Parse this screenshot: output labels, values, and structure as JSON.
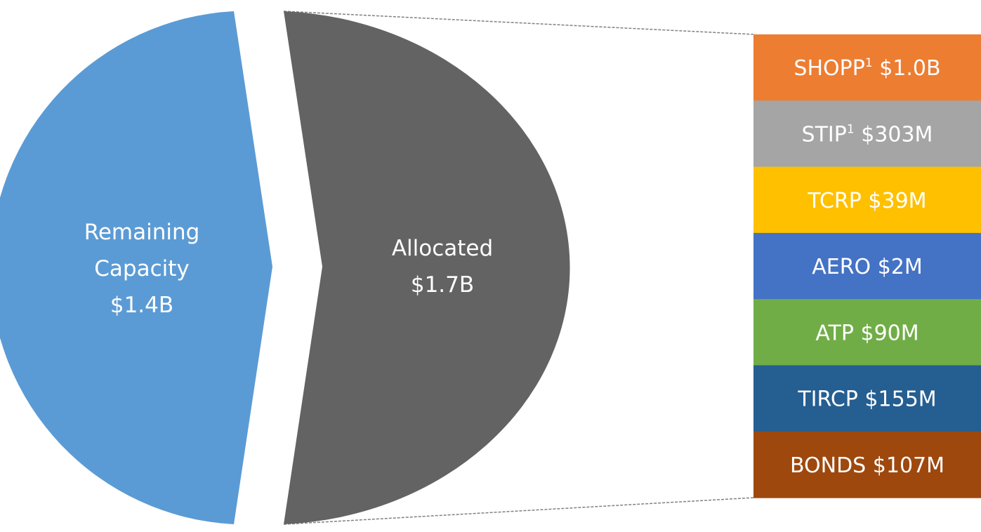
{
  "chart_data": {
    "type": "pie",
    "title": "",
    "slices": [
      {
        "label": "Remaining Capacity",
        "value_text": "$1.4B",
        "value": 1.4,
        "unit": "B",
        "color": "#5B9BD5"
      },
      {
        "label": "Allocated",
        "value_text": "$1.7B",
        "value": 1.7,
        "unit": "B",
        "color": "#636363"
      }
    ],
    "breakdown": {
      "of": "Allocated",
      "type": "stacked-bar",
      "segments": [
        {
          "name": "SHOPP",
          "superscript": "1",
          "value_text": "$1.0B",
          "value_millions": 1000,
          "color": "#ED7D31"
        },
        {
          "name": "STIP",
          "superscript": "1",
          "value_text": "$303M",
          "value_millions": 303,
          "color": "#A5A5A5"
        },
        {
          "name": "TCRP",
          "superscript": "",
          "value_text": "$39M",
          "value_millions": 39,
          "color": "#FFC000"
        },
        {
          "name": "AERO",
          "superscript": "",
          "value_text": "$2M",
          "value_millions": 2,
          "color": "#4472C4"
        },
        {
          "name": "ATP",
          "superscript": "",
          "value_text": "$90M",
          "value_millions": 90,
          "color": "#70AD47"
        },
        {
          "name": "TIRCP",
          "superscript": "",
          "value_text": "$155M",
          "value_millions": 155,
          "color": "#255E91"
        },
        {
          "name": "BONDS",
          "superscript": "",
          "value_text": "$107M",
          "value_millions": 107,
          "color": "#9E480E"
        }
      ]
    }
  }
}
